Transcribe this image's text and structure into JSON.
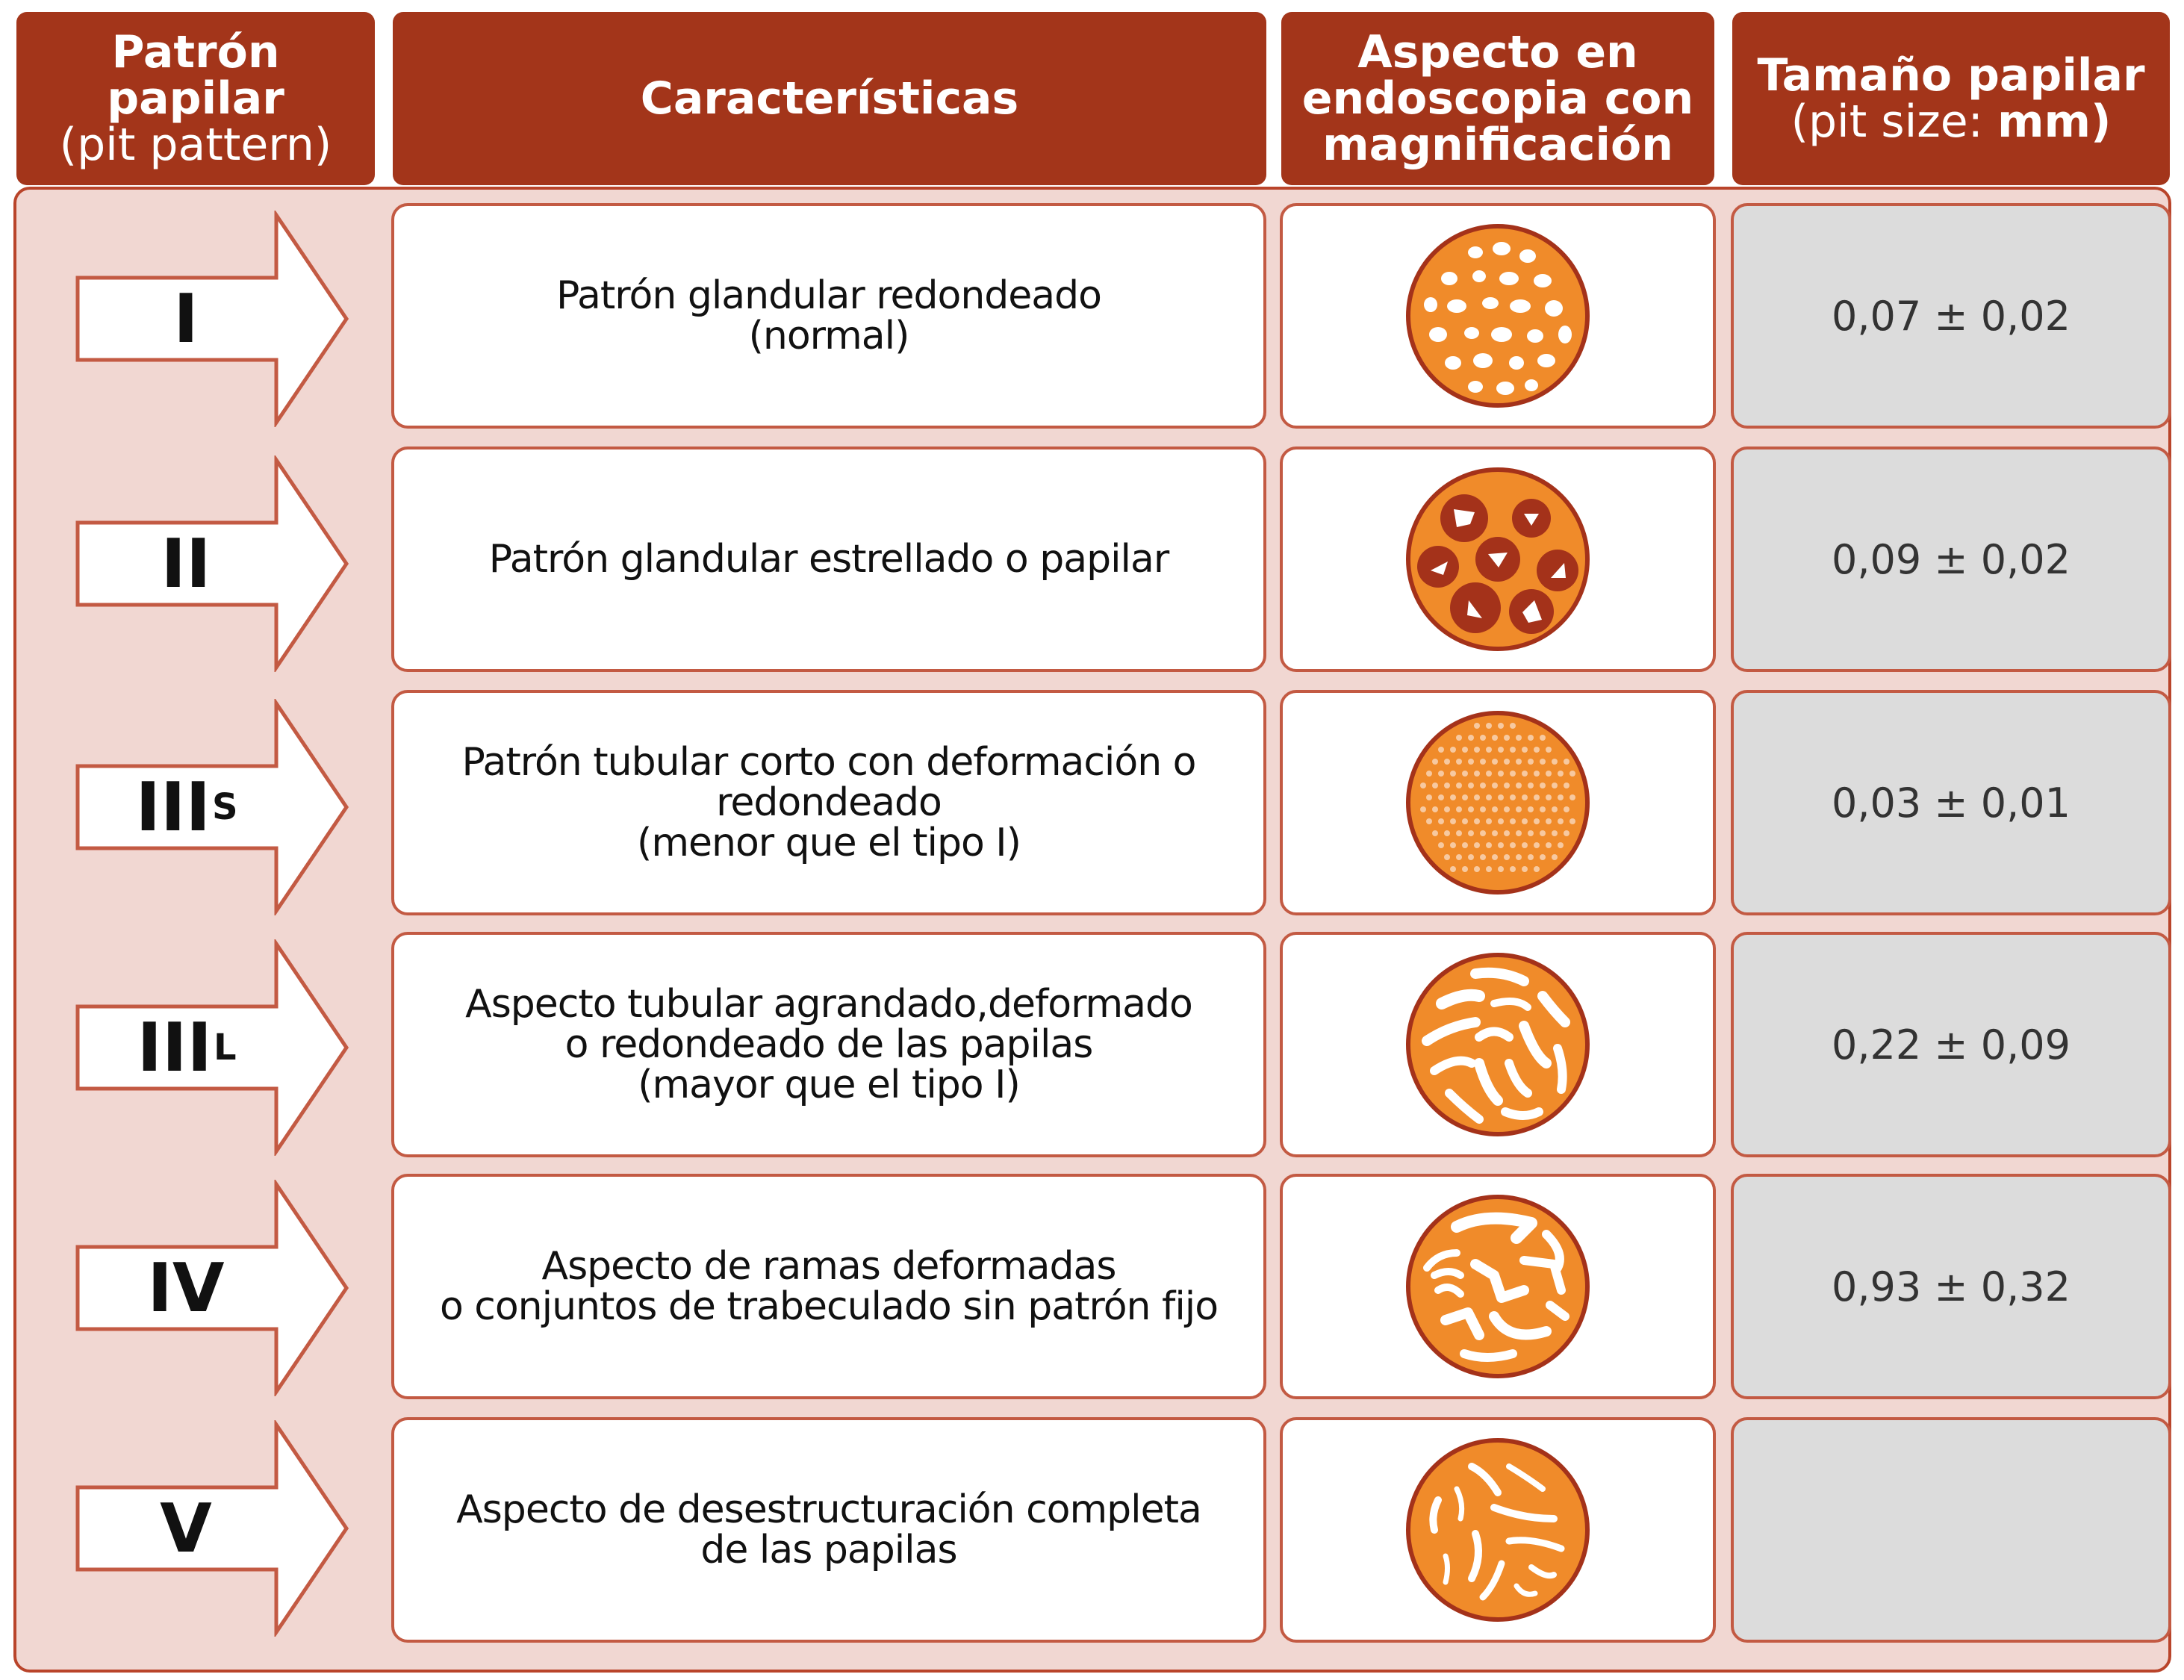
{
  "header": {
    "col1_line1": "Patrón papilar",
    "col1_line2": "(pit pattern)",
    "col2": "Características",
    "col3_line1": "Aspecto en",
    "col3_line2": "endoscopia con",
    "col3_line3": "magnificación",
    "col4_line1": "Tamaño papilar",
    "col4_line2_a": "(pit size: ",
    "col4_line2_b": "mm)"
  },
  "rows": [
    {
      "type": "I",
      "sub": "",
      "desc": [
        "Patrón glandular redondeado",
        "(normal)"
      ],
      "size": "0,07 ± 0,02",
      "pattern_icon": "round-pits-icon"
    },
    {
      "type": "II",
      "sub": "",
      "desc": [
        "Patrón glandular estrellado o papilar"
      ],
      "size": "0,09 ± 0,02",
      "pattern_icon": "stellar-pits-icon"
    },
    {
      "type": "III",
      "sub": "S",
      "desc": [
        "Patrón tubular corto con deformación o",
        "redondeado",
        "(menor que el tipo I)"
      ],
      "size": "0,03 ± 0,01",
      "pattern_icon": "small-pits-icon"
    },
    {
      "type": "III",
      "sub": "L",
      "desc": [
        "Aspecto tubular agrandado,deformado",
        "o redondeado de las papilas",
        "(mayor que el tipo I)"
      ],
      "size": "0,22 ± 0,09",
      "pattern_icon": "tubular-pits-icon"
    },
    {
      "type": "IV",
      "sub": "",
      "desc": [
        "Aspecto de ramas deformadas",
        "o conjuntos de trabeculado sin patrón fijo"
      ],
      "size": "0,93 ± 0,32",
      "pattern_icon": "branched-pits-icon"
    },
    {
      "type": "V",
      "sub": "",
      "desc": [
        "Aspecto de desestructuración completa",
        "de las papilas"
      ],
      "size": "",
      "pattern_icon": "destructured-pits-icon"
    }
  ],
  "colors": {
    "header": "#a3351a",
    "panel": "#f1d7d2",
    "border": "#c35a43",
    "pit_fill": "#f08b2a",
    "pit_dark": "#a4321a",
    "size_cell": "#dcdcdc"
  }
}
